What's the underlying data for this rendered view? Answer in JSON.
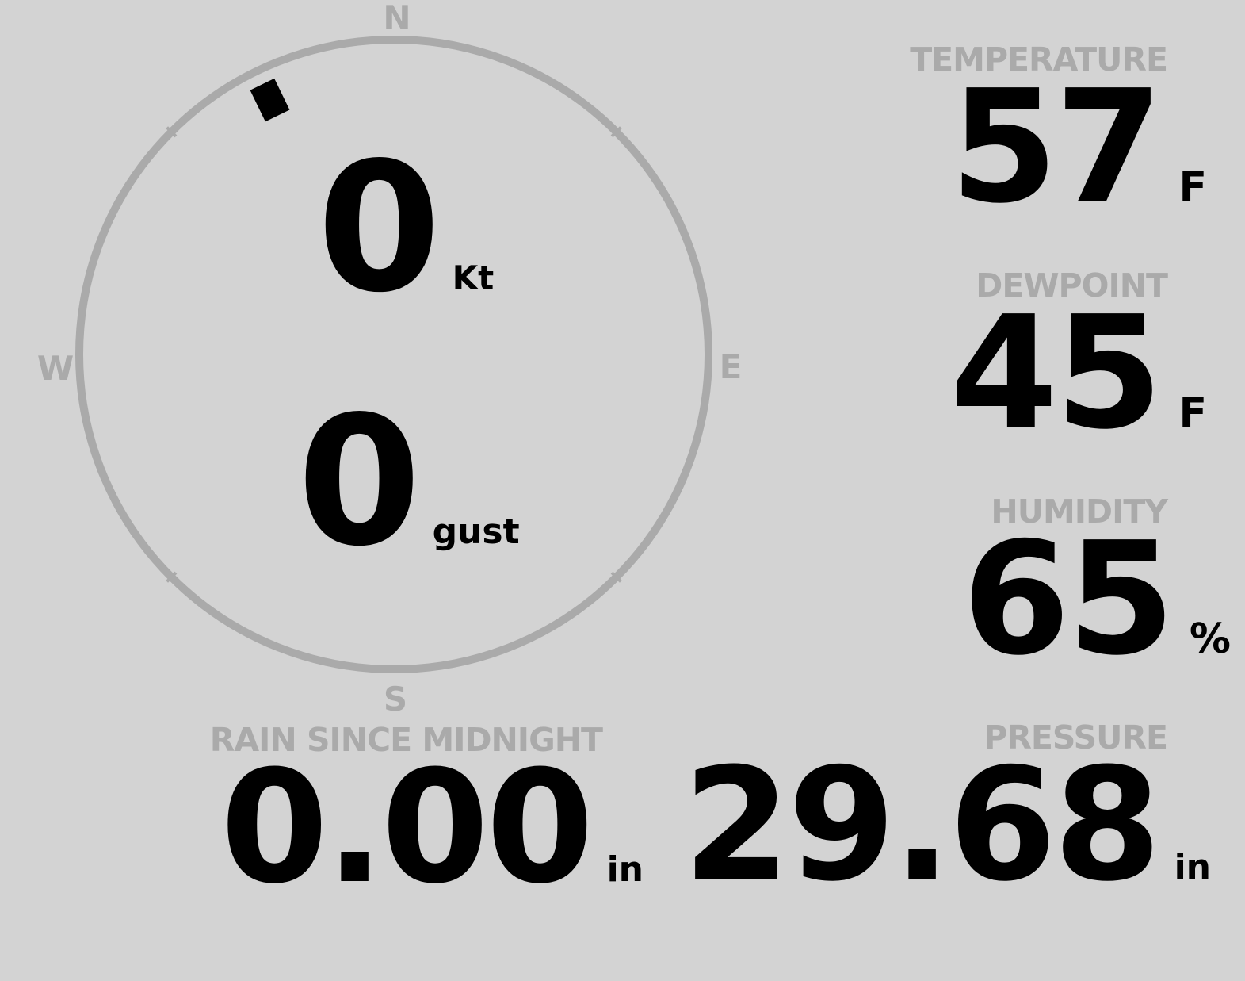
{
  "wind": {
    "direction_degrees": 334,
    "compass": {
      "n": "N",
      "e": "E",
      "s": "S",
      "w": "W"
    },
    "speed": "0",
    "speed_unit": "Kt",
    "gust": "0",
    "gust_unit": "gust"
  },
  "temperature": {
    "label": "TEMPERATURE",
    "value": "57",
    "unit": "F"
  },
  "dewpoint": {
    "label": "DEWPOINT",
    "value": "45",
    "unit": "F"
  },
  "humidity": {
    "label": "HUMIDITY",
    "value": "65",
    "unit": "%"
  },
  "pressure": {
    "label": "PRESSURE",
    "value": "29.68",
    "unit": "in"
  },
  "rain": {
    "label": "RAIN SINCE MIDNIGHT",
    "value": "0.00",
    "unit": "in"
  },
  "colors": {
    "background": "#d3d3d3",
    "label": "#aaaaaa",
    "value": "#000000"
  }
}
